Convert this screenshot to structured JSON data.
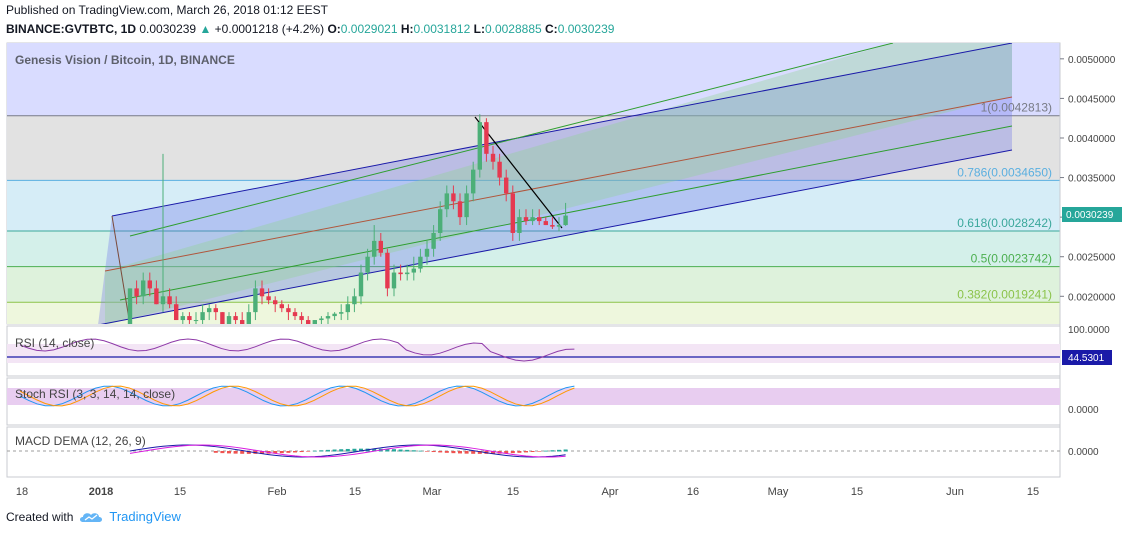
{
  "header": {
    "published": "Published on TradingView.com, March 26, 2018 01:12 EEST",
    "symbol": "BINANCE:GVTBTC, 1D",
    "last": "0.0030239",
    "change_arrow": "▲",
    "change": "+0.0001218 (+4.2%)",
    "o_label": "O:",
    "o_value": "0.0029021",
    "h_label": "H:",
    "h_value": "0.0031812",
    "l_label": "L:",
    "l_value": "0.0028885",
    "c_label": "C:",
    "c_value": "0.0030239"
  },
  "footer": {
    "created_with": "Created with",
    "brand": "TradingView",
    "logo_icon": "tradingview-cloud-icon"
  },
  "chart_data": {
    "type": "candlestick",
    "title": "Genesis Vision / Bitcoin, 1D, BINANCE",
    "y_ticks": [
      "0.0050000",
      "0.0045000",
      "0.0040000",
      "0.0035000",
      "0.0030000",
      "0.0025000",
      "0.0020000"
    ],
    "ylim": [
      0.00165,
      0.0052
    ],
    "x_ticks": [
      "18",
      "2018",
      "15",
      "Feb",
      "15",
      "Mar",
      "15",
      "Apr",
      "16",
      "May",
      "15",
      "Jun",
      "15"
    ],
    "last_price_label": "0.0030239",
    "fib_levels": [
      {
        "label": "1(0.0042813)",
        "value": 0.0042813,
        "color": "#787b86"
      },
      {
        "label": "0.786(0.0034650)",
        "value": 0.003465,
        "color": "#5aafe0"
      },
      {
        "label": "0.618(0.0028242)",
        "value": 0.0028242,
        "color": "#3aa79b"
      },
      {
        "label": "0.5(0.0023742)",
        "value": 0.0023742,
        "color": "#4caf50"
      },
      {
        "label": "0.382(0.0019241)",
        "value": 0.0019241,
        "color": "#8bc34a"
      }
    ],
    "candles": [
      [
        0.0016,
        0.0021,
        0.0016,
        0.0021
      ],
      [
        0.0021,
        0.0022,
        0.0019,
        0.002
      ],
      [
        0.002,
        0.0023,
        0.0019,
        0.0022
      ],
      [
        0.0022,
        0.0023,
        0.002,
        0.0021
      ],
      [
        0.0021,
        0.0022,
        0.0019,
        0.0019
      ],
      [
        0.0019,
        0.0038,
        0.0018,
        0.002
      ],
      [
        0.002,
        0.0021,
        0.00185,
        0.0019
      ],
      [
        0.0019,
        0.002,
        0.0017,
        0.0017
      ],
      [
        0.0017,
        0.0018,
        0.0016,
        0.00175
      ],
      [
        0.00175,
        0.0018,
        0.0016,
        0.0017
      ],
      [
        0.0017,
        0.0018,
        0.0016,
        0.0017
      ],
      [
        0.0017,
        0.0019,
        0.0016,
        0.0018
      ],
      [
        0.0018,
        0.0019,
        0.0017,
        0.00185
      ],
      [
        0.00185,
        0.0019,
        0.0017,
        0.0018
      ],
      [
        0.0018,
        0.0018,
        0.0016,
        0.00165
      ],
      [
        0.00165,
        0.0018,
        0.0016,
        0.00175
      ],
      [
        0.00175,
        0.0018,
        0.0016,
        0.0017
      ],
      [
        0.0017,
        0.0018,
        0.0016,
        0.00165
      ],
      [
        0.00165,
        0.0019,
        0.0016,
        0.0018
      ],
      [
        0.0018,
        0.0022,
        0.0017,
        0.0021
      ],
      [
        0.0021,
        0.0022,
        0.0019,
        0.002
      ],
      [
        0.002,
        0.0021,
        0.0019,
        0.00195
      ],
      [
        0.00195,
        0.002,
        0.0018,
        0.0019
      ],
      [
        0.0019,
        0.00195,
        0.0018,
        0.00185
      ],
      [
        0.00185,
        0.0019,
        0.0017,
        0.0018
      ],
      [
        0.0018,
        0.00185,
        0.0017,
        0.00175
      ],
      [
        0.00175,
        0.0018,
        0.00165,
        0.0017
      ],
      [
        0.0017,
        0.00175,
        0.0016,
        0.00165
      ],
      [
        0.00165,
        0.0017,
        0.0016,
        0.0017
      ],
      [
        0.0017,
        0.00175,
        0.0016,
        0.00172
      ],
      [
        0.00172,
        0.0018,
        0.0016,
        0.00175
      ],
      [
        0.00175,
        0.0018,
        0.0017,
        0.00178
      ],
      [
        0.00178,
        0.0019,
        0.0017,
        0.0018
      ],
      [
        0.0018,
        0.002,
        0.0017,
        0.0019
      ],
      [
        0.0019,
        0.0021,
        0.0018,
        0.002
      ],
      [
        0.002,
        0.0024,
        0.0019,
        0.0023
      ],
      [
        0.0023,
        0.0026,
        0.0022,
        0.0025
      ],
      [
        0.0025,
        0.0029,
        0.0024,
        0.0027
      ],
      [
        0.0027,
        0.0028,
        0.0025,
        0.00255
      ],
      [
        0.00255,
        0.0026,
        0.002,
        0.0021
      ],
      [
        0.0021,
        0.0024,
        0.002,
        0.0023
      ],
      [
        0.0023,
        0.0024,
        0.0022,
        0.00228
      ],
      [
        0.00228,
        0.0024,
        0.0022,
        0.0023
      ],
      [
        0.0023,
        0.0025,
        0.0022,
        0.00235
      ],
      [
        0.00235,
        0.0026,
        0.0023,
        0.0025
      ],
      [
        0.0025,
        0.0027,
        0.0024,
        0.0026
      ],
      [
        0.0026,
        0.0029,
        0.0025,
        0.0028
      ],
      [
        0.0028,
        0.0032,
        0.0027,
        0.0031
      ],
      [
        0.0031,
        0.0034,
        0.003,
        0.0033
      ],
      [
        0.0033,
        0.0034,
        0.0031,
        0.0032
      ],
      [
        0.0032,
        0.0033,
        0.0029,
        0.003
      ],
      [
        0.003,
        0.0034,
        0.0029,
        0.0033
      ],
      [
        0.0033,
        0.0037,
        0.0032,
        0.0036
      ],
      [
        0.0036,
        0.0043,
        0.0035,
        0.0042
      ],
      [
        0.0042,
        0.00425,
        0.0037,
        0.0038
      ],
      [
        0.0038,
        0.0039,
        0.0036,
        0.0037
      ],
      [
        0.0037,
        0.0038,
        0.0034,
        0.0035
      ],
      [
        0.0035,
        0.0036,
        0.0032,
        0.0033
      ],
      [
        0.0033,
        0.0034,
        0.0027,
        0.0028
      ],
      [
        0.0028,
        0.0031,
        0.0027,
        0.003
      ],
      [
        0.003,
        0.0031,
        0.0029,
        0.00295
      ],
      [
        0.00295,
        0.0031,
        0.0029,
        0.003
      ],
      [
        0.003,
        0.0031,
        0.0029,
        0.00295
      ],
      [
        0.00295,
        0.003,
        0.0029,
        0.0029
      ],
      [
        0.0029,
        0.003,
        0.00285,
        0.00288
      ],
      [
        0.00288,
        0.003,
        0.00282,
        0.0029
      ],
      [
        0.0029,
        0.00318,
        0.00289,
        0.00302
      ]
    ],
    "rsi": {
      "label": "RSI (14, close)",
      "top_tick": "100.0000",
      "value_label": "44.5301"
    },
    "stoch_rsi": {
      "label": "Stoch RSI (3, 3, 14, 14, close)",
      "tick": "0.0000"
    },
    "macd": {
      "label": "MACD DEMA (12, 26, 9)",
      "tick": "0.0000"
    }
  }
}
